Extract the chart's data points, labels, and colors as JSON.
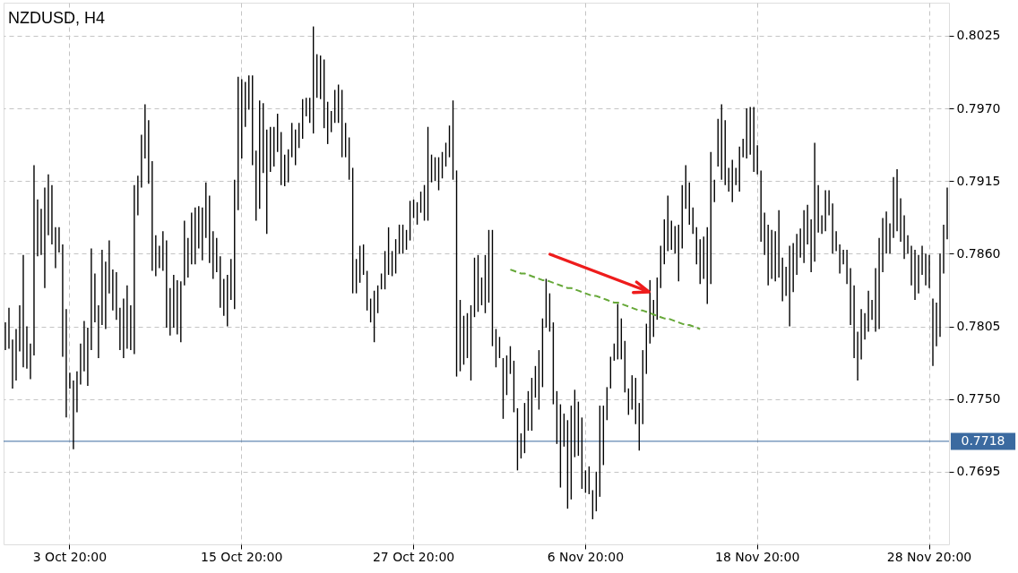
{
  "chart_data": {
    "type": "bar",
    "title": "NZDUSD, H4",
    "categories": [
      null,
      null,
      null,
      null,
      null,
      null,
      null,
      null,
      null,
      null,
      null,
      null,
      null,
      null,
      null,
      null,
      null,
      null,
      "3 Oct 20:00",
      null,
      null,
      null,
      null,
      null,
      null,
      null,
      null,
      null,
      null,
      null,
      null,
      null,
      null,
      null,
      null,
      null,
      null,
      null,
      null,
      null,
      null,
      null,
      null,
      null,
      null,
      null,
      null,
      null,
      null,
      null,
      null,
      null,
      null,
      null,
      null,
      null,
      null,
      null,
      null,
      null,
      null,
      null,
      null,
      null,
      null,
      null,
      "15 Oct 20:00",
      null,
      null,
      null,
      null,
      null,
      null,
      null,
      null,
      null,
      null,
      null,
      null,
      null,
      null,
      null,
      null,
      null,
      null,
      null,
      null,
      null,
      null,
      null,
      null,
      null,
      null,
      null,
      null,
      null,
      null,
      null,
      null,
      null,
      null,
      null,
      null,
      null,
      null,
      null,
      null,
      null,
      null,
      null,
      null,
      null,
      null,
      null,
      "27 Oct 20:00",
      null,
      null,
      null,
      null,
      null,
      null,
      null,
      null,
      null,
      null,
      null,
      null,
      null,
      null,
      null,
      null,
      null,
      null,
      null,
      null,
      null,
      null,
      null,
      null,
      null,
      null,
      null,
      null,
      null,
      null,
      null,
      null,
      null,
      null,
      null,
      null,
      null,
      null,
      null,
      null,
      null,
      null,
      null,
      null,
      null,
      null,
      null,
      "6 Nov 20:00",
      null,
      null,
      null,
      null,
      null,
      null,
      null,
      null,
      null,
      null,
      null,
      null,
      null,
      null,
      null,
      null,
      null,
      null,
      null,
      null,
      null,
      null,
      null,
      null,
      null,
      null,
      null,
      null,
      null,
      null,
      null,
      null,
      null,
      null,
      null,
      null,
      null,
      null,
      null,
      null,
      null,
      null,
      null,
      null,
      null,
      null,
      null,
      "18 Nov 20:00",
      null,
      null,
      null,
      null,
      null,
      null,
      null,
      null,
      null,
      null,
      null,
      null,
      null,
      null,
      null,
      null,
      null,
      null,
      null,
      null,
      null,
      null,
      null,
      null,
      null,
      null,
      null,
      null,
      null,
      null,
      null,
      null,
      null,
      null,
      null,
      null,
      null,
      null,
      null,
      null,
      null,
      null,
      null,
      null,
      null,
      null,
      null,
      "28 Nov 20:00",
      null,
      null,
      null,
      null,
      null
    ],
    "series": [
      {
        "color": "#000000",
        "base": [
          0.7787,
          0.7788,
          0.7758,
          0.7764,
          0.7786,
          0.7774,
          0.7773,
          0.7765,
          0.7783,
          0.7858,
          0.7859,
          0.7834,
          0.7874,
          0.7867,
          0.7849,
          0.7861,
          0.7782,
          0.7736,
          0.7758,
          0.7712,
          0.774,
          0.7761,
          0.7771,
          0.776,
          0.7787,
          0.7808,
          0.7781,
          0.7806,
          0.7803,
          0.783,
          0.7817,
          0.781,
          0.7787,
          0.7781,
          0.7788,
          0.7787,
          0.7784,
          0.7889,
          0.791,
          0.7932,
          0.7913,
          0.7847,
          0.7843,
          0.7849,
          0.7847,
          0.7804,
          0.7798,
          0.7804,
          0.7799,
          0.7793,
          0.7836,
          0.7842,
          0.7852,
          0.7852,
          0.7864,
          0.7855,
          0.7872,
          0.7853,
          0.7841,
          0.7846,
          0.7819,
          0.7813,
          0.7805,
          0.7825,
          0.7818,
          0.7893,
          0.7932,
          0.7956,
          0.7969,
          0.7927,
          0.7885,
          0.7894,
          0.7921,
          0.7875,
          0.7922,
          0.7926,
          0.7937,
          0.7912,
          0.7911,
          0.7914,
          0.7933,
          0.7927,
          0.794,
          0.7947,
          0.7964,
          0.7959,
          0.7951,
          0.7978,
          0.7977,
          0.7955,
          0.7943,
          0.7952,
          0.7959,
          0.7959,
          0.7933,
          0.7933,
          0.7916,
          0.783,
          0.783,
          0.7838,
          0.7844,
          0.7817,
          0.7808,
          0.7793,
          0.7815,
          0.7833,
          0.7833,
          0.7844,
          0.7843,
          0.7845,
          0.786,
          0.786,
          0.7863,
          0.787,
          0.7887,
          0.7882,
          0.7891,
          0.7885,
          0.7885,
          0.7914,
          0.7915,
          0.7908,
          0.7917,
          0.7926,
          0.7933,
          0.7916,
          0.7767,
          0.7771,
          0.7776,
          0.7781,
          0.7764,
          0.7812,
          0.7816,
          0.7821,
          0.7815,
          0.7823,
          0.779,
          0.7774,
          0.7781,
          0.7735,
          0.7753,
          0.7769,
          0.774,
          0.7696,
          0.7705,
          0.7709,
          0.7726,
          0.7726,
          0.7751,
          0.7742,
          0.7759,
          0.7804,
          0.7801,
          0.7746,
          0.7716,
          0.7683,
          0.7714,
          0.7667,
          0.7674,
          0.7706,
          0.7707,
          0.7682,
          0.7679,
          0.7678,
          0.7659,
          0.7665,
          0.7676,
          0.77,
          0.7734,
          0.7758,
          0.7779,
          0.778,
          0.778,
          0.7755,
          0.7738,
          0.7742,
          0.7731,
          0.7711,
          0.7731,
          0.7769,
          0.7792,
          0.7797,
          0.781,
          0.7834,
          0.7852,
          0.7862,
          0.7863,
          0.786,
          0.7839,
          0.7864,
          0.7894,
          0.7882,
          0.7875,
          0.7852,
          0.7837,
          0.7841,
          0.7822,
          0.7837,
          0.7899,
          0.7926,
          0.7916,
          0.7912,
          0.7907,
          0.7899,
          0.7912,
          0.7907,
          0.7933,
          0.7932,
          0.7935,
          0.7922,
          0.792,
          0.7869,
          0.7859,
          0.7836,
          0.7841,
          0.7839,
          0.7842,
          0.7824,
          0.7828,
          0.7805,
          0.7831,
          0.7844,
          0.7857,
          0.7853,
          0.7867,
          0.7846,
          0.7854,
          0.7876,
          0.7875,
          0.7877,
          0.7889,
          0.786,
          0.7862,
          0.7845,
          0.7852,
          0.7837,
          0.7806,
          0.7781,
          0.7764,
          0.778,
          0.7795,
          0.7801,
          0.781,
          0.7801,
          0.7803,
          0.7846,
          0.786,
          0.786,
          0.7872,
          0.7877,
          0.7869,
          0.7856,
          0.786,
          0.7836,
          0.7825,
          0.783,
          0.7844,
          0.7836,
          0.7834,
          0.7775,
          0.779,
          0.7797,
          0.7845,
          0.7871
        ],
        "values": [
          0.0021,
          0.0031,
          0.0037,
          0.0039,
          0.0035,
          0.0085,
          0.0032,
          0.0027,
          0.0144,
          0.0043,
          0.0035,
          0.0076,
          0.0046,
          0.0045,
          0.0031,
          0.0019,
          0.0085,
          0.0082,
          0.0012,
          0.0052,
          0.0031,
          0.0031,
          0.0038,
          0.0044,
          0.0077,
          0.0037,
          0.004,
          0.0057,
          0.0051,
          0.004,
          0.0031,
          0.0036,
          0.0032,
          0.0045,
          0.0048,
          0.0034,
          0.0128,
          0.003,
          0.004,
          0.0041,
          0.0048,
          0.0083,
          0.0031,
          0.0017,
          0.003,
          0.0066,
          0.0036,
          0.004,
          0.0041,
          0.0046,
          0.0049,
          0.003,
          0.0039,
          0.0043,
          0.0032,
          0.004,
          0.0042,
          0.0051,
          0.0036,
          0.0026,
          0.0039,
          0.0028,
          0.0039,
          0.0031,
          0.0098,
          0.0101,
          0.006,
          0.0034,
          0.0026,
          0.0068,
          0.0053,
          0.0082,
          0.0053,
          0.0079,
          0.0034,
          0.003,
          0.0029,
          0.004,
          0.0024,
          0.0025,
          0.0026,
          0.0027,
          0.0019,
          0.003,
          0.0014,
          0.0019,
          0.0081,
          0.0033,
          0.0033,
          0.0052,
          0.0032,
          0.0016,
          0.0025,
          0.0029,
          0.0051,
          0.0026,
          0.0032,
          0.0095,
          0.0026,
          0.0028,
          0.0023,
          0.003,
          0.0018,
          0.0039,
          0.0021,
          0.0012,
          0.0029,
          0.0036,
          0.0019,
          0.0026,
          0.0022,
          0.0022,
          0.0015,
          0.003,
          0.0014,
          0.0017,
          0.0016,
          0.0027,
          0.0071,
          0.0021,
          0.0018,
          0.0025,
          0.002,
          0.0018,
          0.0024,
          0.006,
          0.0156,
          0.0054,
          0.0037,
          0.0034,
          0.0057,
          0.0045,
          0.0043,
          0.0021,
          0.0044,
          0.0055,
          0.0088,
          0.0029,
          0.0016,
          0.0046,
          0.003,
          0.0021,
          0.0039,
          0.0047,
          0.0019,
          0.0038,
          0.003,
          0.004,
          0.0024,
          0.0045,
          0.0052,
          0.0037,
          0.0029,
          0.0062,
          0.004,
          0.0063,
          0.0025,
          0.0067,
          0.0071,
          0.0051,
          0.0041,
          0.0054,
          0.0017,
          0.0021,
          0.0022,
          0.003,
          0.0069,
          0.0045,
          0.0025,
          0.0024,
          0.0013,
          0.0042,
          0.0031,
          0.0039,
          0.002,
          0.0026,
          0.0035,
          0.0036,
          0.0056,
          0.0038,
          0.0048,
          0.0028,
          0.0032,
          0.0032,
          0.0034,
          0.0042,
          0.0022,
          0.0021,
          0.0043,
          0.0048,
          0.0033,
          0.0032,
          0.002,
          0.0028,
          0.0034,
          0.0032,
          0.0058,
          0.01,
          0.0017,
          0.0036,
          0.0057,
          0.0049,
          0.0018,
          0.0032,
          0.0013,
          0.0034,
          0.0014,
          0.0038,
          0.0036,
          0.0049,
          0.0022,
          0.0054,
          0.0032,
          0.0046,
          0.0037,
          0.0038,
          0.0051,
          0.0033,
          0.0022,
          0.0061,
          0.0037,
          0.0031,
          0.0022,
          0.004,
          0.003,
          0.004,
          0.009,
          0.0036,
          0.0014,
          0.0031,
          0.0019,
          0.0038,
          0.0015,
          0.0022,
          0.0011,
          0.0026,
          0.0043,
          0.0055,
          0.0037,
          0.0038,
          0.002,
          0.0031,
          0.0015,
          0.0048,
          0.0069,
          0.0041,
          0.0032,
          0.0023,
          0.0046,
          0.0047,
          0.0033,
          0.0033,
          0.0014,
          0.003,
          0.0038,
          0.0029,
          0.0022,
          0.0024,
          0.0025,
          0.0051,
          0.0033,
          0.0063,
          0.0037,
          0.0039
        ]
      },
      {
        "type": "line",
        "color": "#66a838",
        "line_style": "dashed",
        "values": [
          null,
          null,
          null,
          null,
          null,
          null,
          null,
          null,
          null,
          null,
          null,
          null,
          null,
          null,
          null,
          null,
          null,
          null,
          null,
          null,
          null,
          null,
          null,
          null,
          null,
          null,
          null,
          null,
          null,
          null,
          null,
          null,
          null,
          null,
          null,
          null,
          null,
          null,
          null,
          null,
          null,
          null,
          null,
          null,
          null,
          null,
          null,
          null,
          null,
          null,
          null,
          null,
          null,
          null,
          null,
          null,
          null,
          null,
          null,
          null,
          null,
          null,
          null,
          null,
          null,
          null,
          null,
          null,
          null,
          null,
          null,
          null,
          null,
          null,
          null,
          null,
          null,
          null,
          null,
          null,
          null,
          null,
          null,
          null,
          null,
          null,
          null,
          null,
          null,
          null,
          null,
          null,
          null,
          null,
          null,
          null,
          null,
          null,
          null,
          null,
          null,
          null,
          null,
          null,
          null,
          null,
          null,
          null,
          null,
          null,
          null,
          null,
          null,
          null,
          null,
          null,
          null,
          null,
          null,
          null,
          null,
          null,
          null,
          null,
          null,
          null,
          null,
          null,
          null,
          null,
          null,
          null,
          null,
          null,
          null,
          null,
          null,
          null,
          null,
          null,
          null,
          0.7848,
          0.7847,
          0.7846,
          0.7845,
          0.7845,
          0.7844,
          0.7843,
          0.7842,
          0.7841,
          0.784,
          0.784,
          0.7839,
          0.7838,
          0.7837,
          0.7836,
          0.7835,
          0.7834,
          0.7834,
          0.7833,
          0.7832,
          0.7831,
          0.783,
          0.7829,
          0.7828,
          0.7828,
          0.7827,
          0.7826,
          0.7825,
          0.7824,
          0.7823,
          0.7823,
          0.7822,
          0.7821,
          0.782,
          0.7819,
          0.7818,
          0.7817,
          0.7817,
          0.7816,
          0.7815,
          0.7814,
          0.7813,
          0.7812,
          0.7811,
          0.7811,
          0.781,
          0.7809,
          0.7808,
          0.7807,
          0.7806,
          0.7806,
          0.7805,
          0.7804,
          0.7803,
          null,
          null,
          null,
          null,
          null,
          null,
          null,
          null,
          null,
          null,
          null,
          null,
          null,
          null,
          null,
          null,
          null,
          null,
          null,
          null,
          null,
          null,
          null,
          null,
          null,
          null,
          null,
          null,
          null,
          null,
          null,
          null,
          null,
          null,
          null,
          null,
          null,
          null,
          null,
          null,
          null,
          null,
          null,
          null,
          null,
          null,
          null,
          null,
          null,
          null,
          null,
          null,
          null,
          null,
          null,
          null,
          null,
          null,
          null,
          null,
          null,
          null,
          null,
          null,
          null,
          null,
          null,
          null,
          null
        ]
      }
    ],
    "ylim": [
      0.764,
      0.805
    ],
    "yticks": [
      0.7695,
      {
        "value": 0.775,
        "label": "0.7750"
      },
      0.7805,
      {
        "value": 0.786,
        "label": "0.7860"
      },
      0.7915,
      {
        "value": 0.797,
        "label": "0.7970"
      },
      0.8025
    ],
    "grid": true,
    "ref_lines": [
      {
        "axis": "y",
        "value": 0.7718,
        "label": "0.7718",
        "color": "#3b6aa0"
      }
    ]
  }
}
